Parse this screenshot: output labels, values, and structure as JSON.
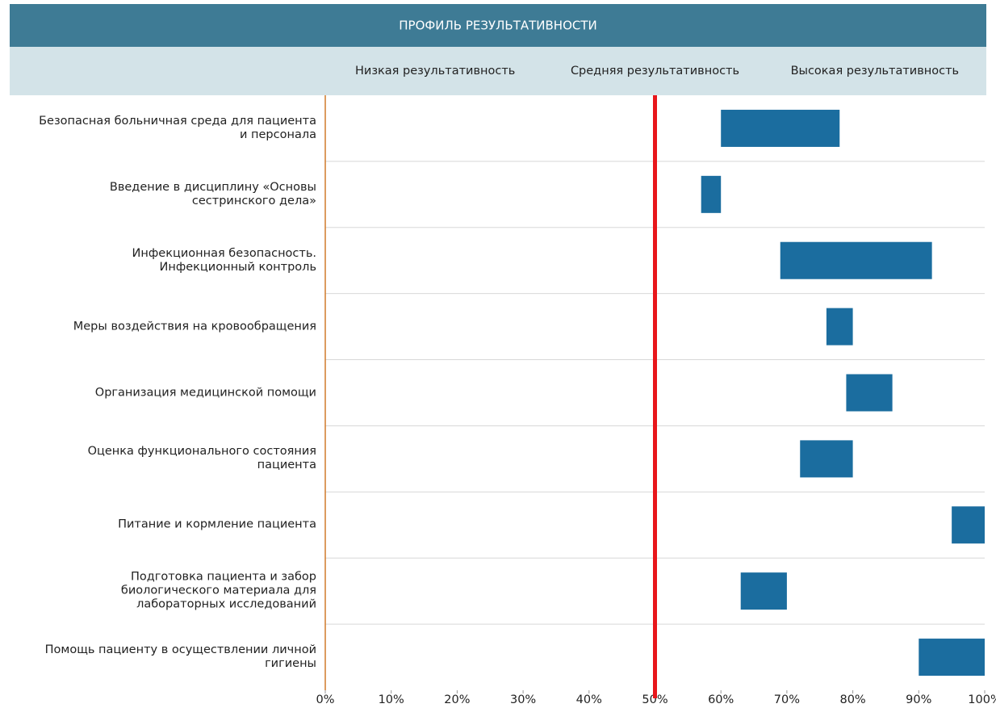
{
  "chart_data": {
    "type": "range-bar",
    "title": "ПРОФИЛЬ РЕЗУЛЬТАТИВНОСТИ",
    "bands": [
      "Низкая результативность",
      "Средняя результативность",
      "Высокая результативность"
    ],
    "categories": [
      "Безопасная больничная среда для пациента\nи персонала",
      "Введение в дисциплину «Основы\nсестринского дела»",
      "Инфекционная безопасность.\nИнфекционный контроль",
      "Меры воздействия на кровообращения",
      "Организация медицинской помощи",
      "Оценка функционального состояния\nпациента",
      "Питание и кормление пациента",
      "Подготовка пациента и забор\nбиологического материала для\nлабораторных исследований",
      "Помощь пациенту в осуществлении личной\nгигиены"
    ],
    "ranges": [
      [
        60,
        78
      ],
      [
        57,
        60
      ],
      [
        69,
        92
      ],
      [
        76,
        80
      ],
      [
        79,
        86
      ],
      [
        72,
        80
      ],
      [
        95,
        100
      ],
      [
        63,
        70
      ],
      [
        90,
        100
      ]
    ],
    "color": "#1b6d9f",
    "threshold": 50,
    "threshold_color": "#e8161b",
    "xlim": [
      0,
      100
    ],
    "xticks": [
      {
        "value": 0,
        "label": "0%"
      },
      {
        "value": 10,
        "label": "10%"
      },
      {
        "value": 20,
        "label": "20%"
      },
      {
        "value": 30,
        "label": "30%"
      },
      {
        "value": 40,
        "label": "40%"
      },
      {
        "value": 50,
        "label": "50%"
      },
      {
        "value": 60,
        "label": "60%"
      },
      {
        "value": 70,
        "label": "70%"
      },
      {
        "value": 80,
        "label": "80%"
      },
      {
        "value": 90,
        "label": "90%"
      },
      {
        "value": 100,
        "label": "100%"
      }
    ]
  }
}
